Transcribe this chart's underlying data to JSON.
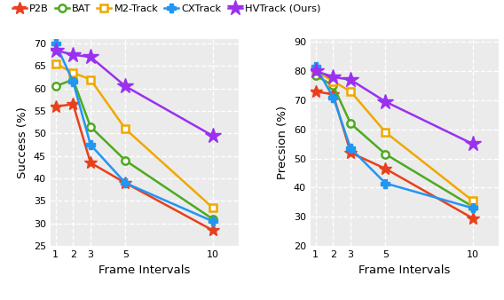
{
  "x_ticks": [
    1,
    2,
    3,
    5,
    10
  ],
  "x_labels": [
    "1",
    "2",
    "3",
    "5",
    "10"
  ],
  "success": {
    "P2B": [
      56.0,
      56.5,
      43.5,
      39.0,
      28.5
    ],
    "BAT": [
      60.5,
      62.0,
      51.5,
      44.0,
      31.0
    ],
    "M2-Track": [
      65.5,
      63.5,
      62.0,
      51.0,
      33.5
    ],
    "CXTrack": [
      70.0,
      61.5,
      47.5,
      39.0,
      30.5
    ],
    "HVTrack": [
      68.5,
      67.5,
      67.0,
      60.5,
      49.5
    ]
  },
  "precision": {
    "P2B": [
      73.0,
      72.0,
      52.0,
      46.5,
      29.5
    ],
    "BAT": [
      78.5,
      75.0,
      62.0,
      51.5,
      33.5
    ],
    "M2-Track": [
      80.0,
      76.5,
      73.0,
      59.0,
      35.5
    ],
    "CXTrack": [
      81.5,
      71.0,
      53.5,
      41.5,
      33.0
    ],
    "HVTrack": [
      80.0,
      78.0,
      77.0,
      69.5,
      55.0
    ]
  },
  "colors": {
    "P2B": "#e8401c",
    "BAT": "#4daa20",
    "M2-Track": "#f0a800",
    "CXTrack": "#2196f3",
    "HVTrack": "#9b30f0"
  },
  "markers": {
    "P2B": "*",
    "BAT": "o",
    "M2-Track": "s",
    "CXTrack": "P",
    "HVTrack": "*"
  },
  "marker_sizes": {
    "P2B": 10,
    "BAT": 6,
    "M2-Track": 6,
    "CXTrack": 7,
    "HVTrack": 13
  },
  "success_ylim": [
    25,
    71
  ],
  "precision_ylim": [
    20,
    91
  ],
  "success_yticks": [
    25,
    30,
    35,
    40,
    45,
    50,
    55,
    60,
    65,
    70
  ],
  "precision_yticks": [
    20,
    30,
    40,
    50,
    60,
    70,
    80,
    90
  ],
  "xlabel": "Frame Intervals",
  "success_ylabel": "Success (%)",
  "precision_ylabel": "Precsion (%)",
  "legend_labels": [
    "P2B",
    "BAT",
    "M2-Track",
    "CXTrack",
    "HVTrack (Ours)"
  ],
  "bg_color": "#ebebeb"
}
